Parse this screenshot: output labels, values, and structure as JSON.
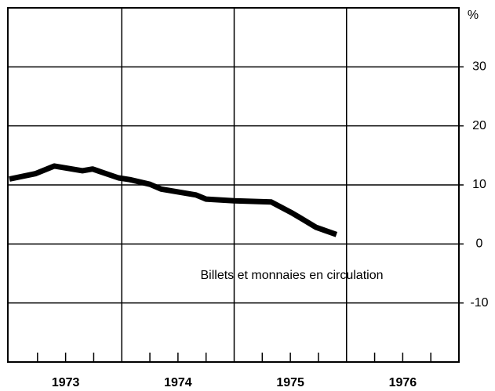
{
  "chart_data": {
    "type": "line",
    "y_unit": "%",
    "annotation": "Billets et monnaies en circulation",
    "categories": [
      "1973",
      "1974",
      "1975",
      "1976"
    ],
    "xlim": [
      1973,
      1977
    ],
    "x": [
      1973.0,
      1973.23,
      1973.4,
      1973.65,
      1973.74,
      1973.97,
      1974.07,
      1974.25,
      1974.35,
      1974.66,
      1974.75,
      1975.0,
      1975.33,
      1975.52,
      1975.73,
      1975.91
    ],
    "series": [
      {
        "color": "#000000",
        "values": [
          11.0,
          11.9,
          13.2,
          12.4,
          12.7,
          11.2,
          10.9,
          10.1,
          9.3,
          8.3,
          7.6,
          7.3,
          7.1,
          5.2,
          2.8,
          1.6
        ]
      }
    ],
    "ylim": [
      -20,
      40
    ],
    "yticks": [
      -10,
      0,
      10,
      20,
      30
    ],
    "grid": true
  }
}
